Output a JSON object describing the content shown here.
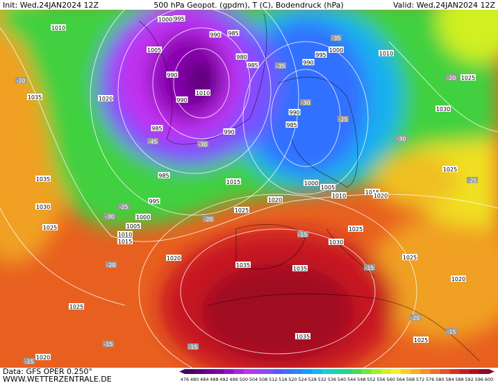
{
  "header": {
    "init": "Init: Wed,24JAN2024 12Z",
    "title": "500 hPa Geopot. (gpdm), T (C), Bodendruck (hPa)",
    "valid": "Valid: Wed,24JAN2024 12Z"
  },
  "footer": {
    "data": "Data: GFS OPER 0.250°",
    "site": "WWW.WETTERZENTRALE.DE"
  },
  "colorbar": {
    "labels": [
      476,
      480,
      484,
      488,
      492,
      496,
      500,
      504,
      508,
      512,
      516,
      520,
      524,
      528,
      532,
      536,
      540,
      544,
      548,
      552,
      556,
      560,
      564,
      568,
      572,
      576,
      580,
      584,
      588,
      592,
      596,
      600
    ],
    "colors": [
      "#4a0060",
      "#5c0078",
      "#700090",
      "#8400a8",
      "#9a10c0",
      "#b020d8",
      "#c430f0",
      "#a040f8",
      "#7c50ff",
      "#5858ff",
      "#3a70ff",
      "#2088ff",
      "#10a0ff",
      "#10b8f0",
      "#10d0d8",
      "#10d8a8",
      "#20d878",
      "#40e050",
      "#70e830",
      "#a0f020",
      "#d0f020",
      "#f8f020",
      "#f8d020",
      "#f8b020",
      "#f89020",
      "#f07020",
      "#e85020",
      "#d83020",
      "#c81820",
      "#b00c20",
      "#900820"
    ]
  },
  "map_labels": {
    "isobars": [
      "1000",
      "995",
      "1010",
      "1005",
      "990",
      "985",
      "980",
      "985",
      "990",
      "1010",
      "990",
      "985",
      "990",
      "985",
      "995",
      "1000",
      "1005",
      "1010",
      "1015",
      "1020",
      "1035",
      "1035",
      "1030",
      "1025",
      "1020",
      "1025",
      "1020",
      "1035",
      "1035",
      "1035",
      "1030",
      "1025",
      "1020",
      "1025",
      "1015",
      "990",
      "995",
      "1000",
      "1010",
      "1025",
      "1030",
      "1025",
      "1020",
      "1025",
      "1025",
      "990",
      "985",
      "1000",
      "1005",
      "1010",
      "1015",
      "1020"
    ],
    "temperatures": [
      "-20",
      "-45",
      "-30",
      "-35",
      "-35",
      "-30",
      "-25",
      "-30",
      "-20",
      "-25",
      "-25",
      "-30",
      "-20",
      "-20",
      "-15",
      "-15",
      "-20",
      "-15",
      "-15",
      "-15",
      "-15"
    ]
  }
}
